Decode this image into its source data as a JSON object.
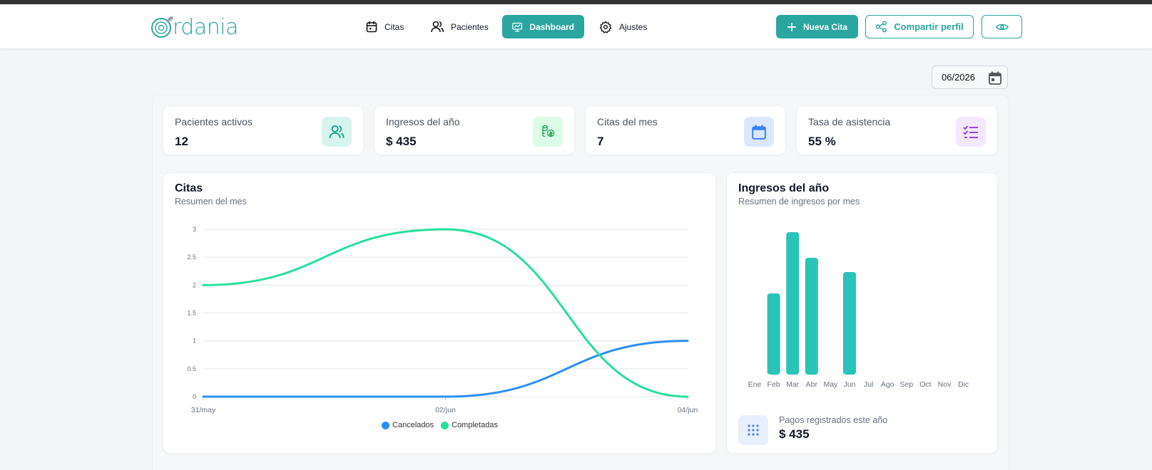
{
  "brand": {
    "name": "rdania",
    "color": "#2aa5a0"
  },
  "nav": {
    "items": [
      {
        "label": "Citas",
        "icon": "calendar-icon",
        "active": false
      },
      {
        "label": "Pacientes",
        "icon": "users-icon",
        "active": false
      },
      {
        "label": "Dashboard",
        "icon": "monitor-chart-icon",
        "active": true
      },
      {
        "label": "Ajustes",
        "icon": "gear-icon",
        "active": false
      }
    ]
  },
  "actions": {
    "new_appointment": "Nueva Cita",
    "share_profile": "Compartir perfil"
  },
  "period": {
    "value": "06/2026"
  },
  "stats": [
    {
      "label": "Pacientes activos",
      "value": "12",
      "icon": "users-icon",
      "icon_bg": "#d5f5ee",
      "icon_color": "#0f9d8a"
    },
    {
      "label": "Ingresos del año",
      "value": "$ 435",
      "icon": "money-icon",
      "icon_bg": "#dcfce7",
      "icon_color": "#16a34a"
    },
    {
      "label": "Citas del mes",
      "value": "7",
      "icon": "calendar-icon",
      "icon_bg": "#dbe7fd",
      "icon_color": "#3b82f6"
    },
    {
      "label": "Tasa de asistencia",
      "value": "55 %",
      "icon": "checklist-icon",
      "icon_bg": "#f3e8ff",
      "icon_color": "#9333ea"
    }
  ],
  "appointments_card": {
    "title": "Citas",
    "subtitle": "Resumen del mes"
  },
  "revenue_card": {
    "title": "Ingresos del año",
    "subtitle": "Resumen de ingresos por mes",
    "payments_label": "Pagos registrados este año",
    "payments_value": "$ 435"
  },
  "chart_data": [
    {
      "type": "line",
      "x": [
        "31/may",
        "02/jun",
        "04/jun"
      ],
      "ylim": [
        0,
        3
      ],
      "yticks": [
        "0",
        "0.5",
        "1",
        "1.5",
        "2",
        "2.5",
        "3"
      ],
      "grid": true,
      "legend": "bottom",
      "series": [
        {
          "name": "Cancelados",
          "color": "#2b8ff0",
          "values": [
            0,
            0,
            1
          ]
        },
        {
          "name": "Completadas",
          "color": "#25e09a",
          "values": [
            2,
            3,
            0
          ]
        }
      ]
    },
    {
      "type": "bar",
      "categories": [
        "Ene",
        "Feb",
        "Mar",
        "Abr",
        "May",
        "Jun",
        "Jul",
        "Ago",
        "Sep",
        "Oct",
        "Nov",
        "Dic"
      ],
      "values": [
        0,
        57,
        100,
        82,
        0,
        72,
        0,
        0,
        0,
        0,
        0,
        0
      ],
      "color": "#2ac3b8",
      "grid": false
    }
  ]
}
